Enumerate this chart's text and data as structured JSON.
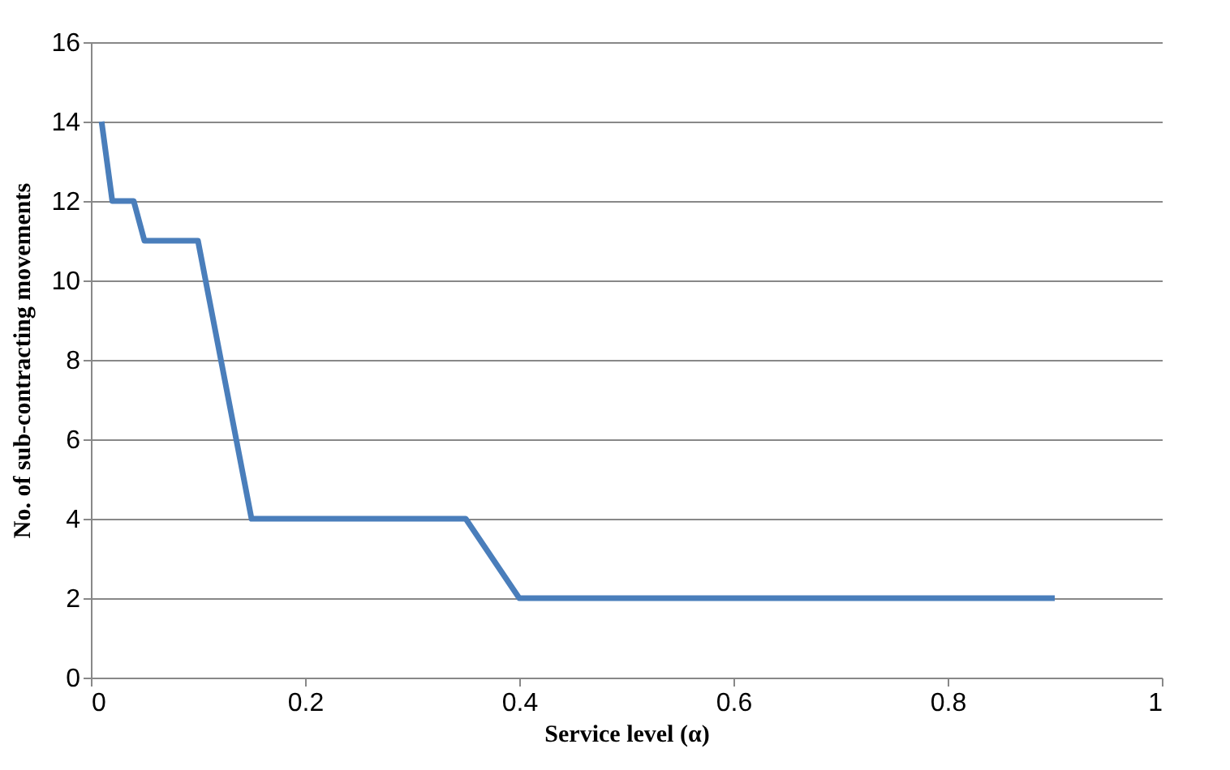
{
  "chart_data": {
    "type": "line",
    "xlabel": "Service level (α)",
    "ylabel": "No. of sub-contracting movements",
    "x": [
      0.01,
      0.02,
      0.04,
      0.05,
      0.1,
      0.15,
      0.35,
      0.4,
      0.9
    ],
    "series": [
      {
        "color": "#4a7ebb",
        "values": [
          14,
          12,
          12,
          11,
          11,
          4,
          4,
          2,
          2
        ]
      }
    ],
    "xlim": [
      0,
      1
    ],
    "xticks": [
      0,
      0.2,
      0.4,
      0.6,
      0.8,
      1
    ],
    "ylim": [
      0,
      16
    ],
    "yticks": [
      0,
      2,
      4,
      6,
      8,
      10,
      12,
      14,
      16
    ],
    "grid": "y",
    "marker": "none",
    "line_style": "solid"
  }
}
